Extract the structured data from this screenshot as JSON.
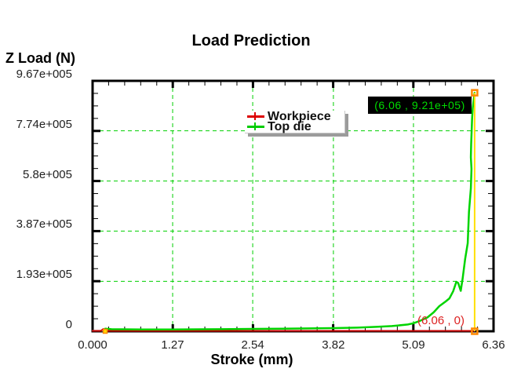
{
  "chart": {
    "title": "Load Prediction",
    "x_axis": {
      "label": "Stroke (mm)"
    },
    "y_axis": {
      "label": "Z Load (N)"
    }
  },
  "legend": {
    "items": [
      {
        "label": "Workpiece",
        "color": "#dd0000"
      },
      {
        "label": "Top die",
        "color": "#00cc00"
      }
    ]
  },
  "annotations": {
    "top": {
      "text": "(6.06 , 9.21e+05)",
      "color": "#00dd00",
      "background": "#000000"
    },
    "bottom": {
      "text": "(6.06 , 0)",
      "color": "#dd2222"
    }
  },
  "chart_data": {
    "type": "line",
    "title": "Load Prediction",
    "xlabel": "Stroke (mm)",
    "ylabel": "Z Load (N)",
    "xlim": [
      0,
      6.36
    ],
    "ylim": [
      0,
      967000
    ],
    "x_ticks": {
      "values": [
        0,
        1.27,
        2.54,
        3.82,
        5.09,
        6.36
      ],
      "labels": [
        "0.000",
        "1.27",
        "2.54",
        "3.82",
        "5.09",
        "6.36"
      ]
    },
    "y_ticks": {
      "values": [
        0,
        193000,
        387000,
        580000,
        774000,
        967000
      ],
      "labels": [
        "0",
        "1.93e+005",
        "3.87e+005",
        "5.8e+005",
        "7.74e+005",
        "9.67e+005"
      ]
    },
    "grid": true,
    "grid_color": "#00cf00",
    "grid_style": "dashed",
    "axis_color": "#000000",
    "legend_position": "top-center",
    "series": [
      {
        "name": "",
        "color": "#b0b0b0",
        "points": [
          [
            0,
            2000
          ],
          [
            0.16,
            2000
          ]
        ]
      },
      {
        "name": "Workpiece",
        "color": "#cc0000",
        "points": [
          [
            0,
            1500
          ],
          [
            0.13,
            1500
          ],
          [
            0.17,
            9000
          ],
          [
            0.21,
            1500
          ],
          [
            1,
            1500
          ],
          [
            2,
            1500
          ],
          [
            3,
            1500
          ],
          [
            3.82,
            1500
          ],
          [
            5,
            1500
          ],
          [
            5.6,
            1500
          ],
          [
            6.06,
            1500
          ]
        ]
      },
      {
        "name": "Top die",
        "color": "#00d400",
        "points": [
          [
            0.2,
            10000
          ],
          [
            0.3,
            8000
          ],
          [
            0.8,
            7000
          ],
          [
            1.27,
            7000
          ],
          [
            2,
            8000
          ],
          [
            2.54,
            9000
          ],
          [
            3,
            10000
          ],
          [
            3.82,
            12000
          ],
          [
            4.2,
            14000
          ],
          [
            4.5,
            17000
          ],
          [
            4.75,
            20000
          ],
          [
            5,
            26000
          ],
          [
            5.09,
            31000
          ],
          [
            5.2,
            41000
          ],
          [
            5.31,
            53000
          ],
          [
            5.41,
            73000
          ],
          [
            5.5,
            97000
          ],
          [
            5.6,
            115000
          ],
          [
            5.66,
            127000
          ],
          [
            5.72,
            155000
          ],
          [
            5.77,
            191000
          ],
          [
            5.8,
            186000
          ],
          [
            5.84,
            156000
          ],
          [
            5.87,
            203000
          ],
          [
            5.91,
            279000
          ],
          [
            5.95,
            340000
          ],
          [
            5.97,
            461000
          ],
          [
            6.0,
            552000
          ],
          [
            6.01,
            627000
          ],
          [
            6.0,
            672000
          ],
          [
            6.005,
            724000
          ],
          [
            6.02,
            824000
          ],
          [
            6.03,
            862000
          ],
          [
            6.045,
            893000
          ],
          [
            6.06,
            921000
          ]
        ]
      }
    ],
    "crosshair": {
      "x": 6.06,
      "line_color": "#ffe000",
      "marker_color": "#ff8800",
      "points": [
        {
          "x": 6.06,
          "y": 921000
        },
        {
          "x": 6.06,
          "y": 0
        }
      ]
    },
    "annotations": [
      {
        "x": 6.06,
        "y": 921000,
        "text": "(6.06 , 9.21e+05)"
      },
      {
        "x": 6.06,
        "y": 0,
        "text": "(6.06 , 0)"
      }
    ]
  }
}
